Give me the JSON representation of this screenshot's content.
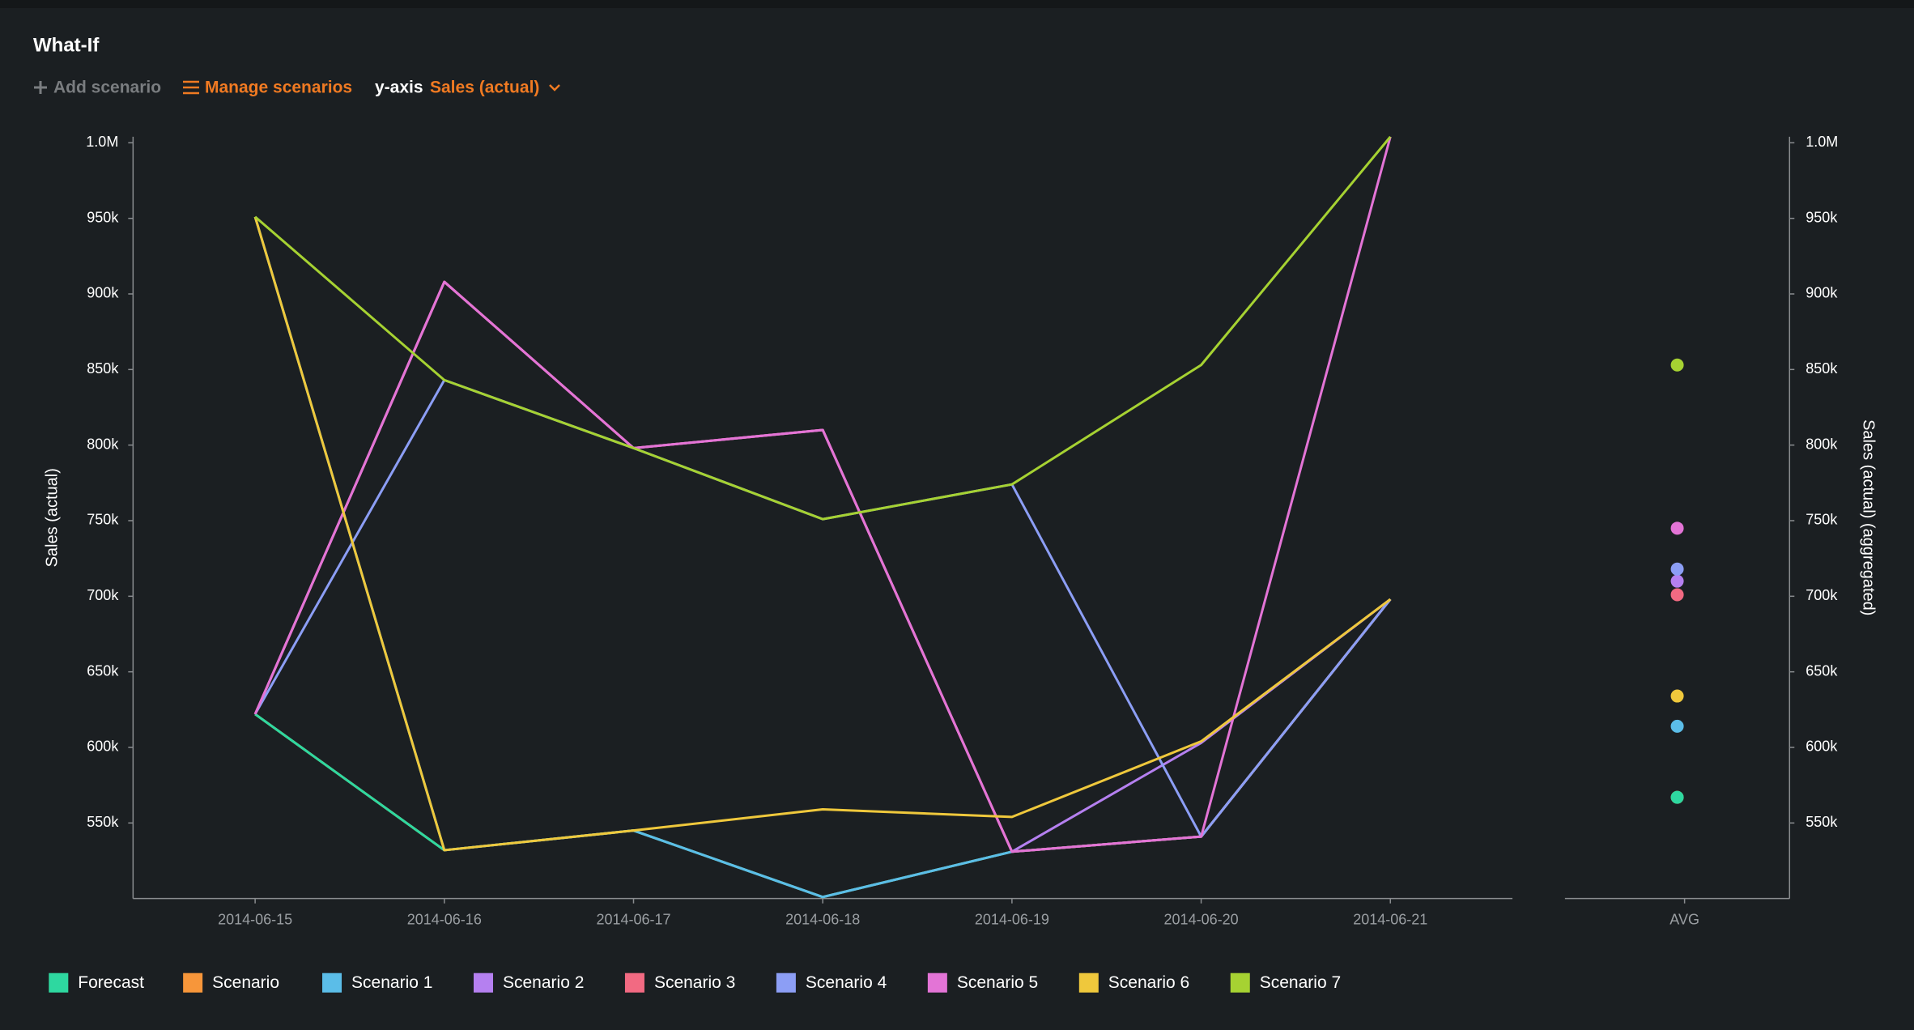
{
  "header": {
    "title": "What-If"
  },
  "toolbar": {
    "add": "Add scenario",
    "manage": "Manage scenarios",
    "axis_label": "y-axis",
    "axis_value": "Sales (actual)"
  },
  "chart_data": {
    "type": "line",
    "ylabel": "Sales (actual)",
    "y2label": "Sales (actual) (aggregated)",
    "avg_label": "AVG",
    "x": [
      "2014-06-15",
      "2014-06-16",
      "2014-06-17",
      "2014-06-18",
      "2014-06-19",
      "2014-06-20",
      "2014-06-21"
    ],
    "ylim": [
      500000,
      1004000
    ],
    "y2lim": [
      500000,
      1004000
    ],
    "yticks": [
      {
        "value": 550000,
        "label": "550k"
      },
      {
        "value": 600000,
        "label": "600k"
      },
      {
        "value": 650000,
        "label": "650k"
      },
      {
        "value": 700000,
        "label": "700k"
      },
      {
        "value": 750000,
        "label": "750k"
      },
      {
        "value": 800000,
        "label": "800k"
      },
      {
        "value": 850000,
        "label": "850k"
      },
      {
        "value": 900000,
        "label": "900k"
      },
      {
        "value": 950000,
        "label": "950k"
      },
      {
        "value": 1000000,
        "label": "1.0M"
      }
    ],
    "y2ticks": [
      {
        "value": 550000,
        "label": "550k"
      },
      {
        "value": 600000,
        "label": "600k"
      },
      {
        "value": 650000,
        "label": "650k"
      },
      {
        "value": 700000,
        "label": "700k"
      },
      {
        "value": 750000,
        "label": "750k"
      },
      {
        "value": 800000,
        "label": "800k"
      },
      {
        "value": 850000,
        "label": "850k"
      },
      {
        "value": 900000,
        "label": "900k"
      },
      {
        "value": 950000,
        "label": "950k"
      },
      {
        "value": 1000000,
        "label": "1.0M"
      }
    ],
    "series": [
      {
        "name": "Forecast",
        "color": "#2ed8a0",
        "values": [
          622000,
          532000,
          545000,
          501000,
          531000,
          541000,
          698000
        ],
        "avg": 567000
      },
      {
        "name": "Scenario",
        "color": "#f7963a",
        "values": [
          622000,
          532000,
          545000,
          501000,
          531000,
          541000,
          698000
        ],
        "avg": 567000
      },
      {
        "name": "Scenario 1",
        "color": "#5bbde8",
        "values": [
          951000,
          532000,
          545000,
          501000,
          531000,
          541000,
          698000
        ],
        "avg": 614000
      },
      {
        "name": "Scenario 2",
        "color": "#b580f0",
        "values": [
          622000,
          908000,
          798000,
          810000,
          531000,
          603000,
          698000
        ],
        "avg": 710000
      },
      {
        "name": "Scenario 3",
        "color": "#f26a82",
        "values": [
          622000,
          908000,
          798000,
          810000,
          531000,
          541000,
          698000
        ],
        "avg": 701000
      },
      {
        "name": "Scenario 4",
        "color": "#8c9ef5",
        "values": [
          622000,
          843000,
          798000,
          751000,
          774000,
          541000,
          698000
        ],
        "avg": 718000
      },
      {
        "name": "Scenario 5",
        "color": "#e374d6",
        "values": [
          622000,
          908000,
          798000,
          810000,
          531000,
          541000,
          1004000
        ],
        "avg": 745000
      },
      {
        "name": "Scenario 6",
        "color": "#efc83c",
        "values": [
          951000,
          532000,
          545000,
          559000,
          554000,
          604000,
          698000
        ],
        "avg": 634000
      },
      {
        "name": "Scenario 7",
        "color": "#a6d232",
        "values": [
          951000,
          843000,
          798000,
          751000,
          774000,
          853000,
          1004000
        ],
        "avg": 853000
      }
    ]
  }
}
